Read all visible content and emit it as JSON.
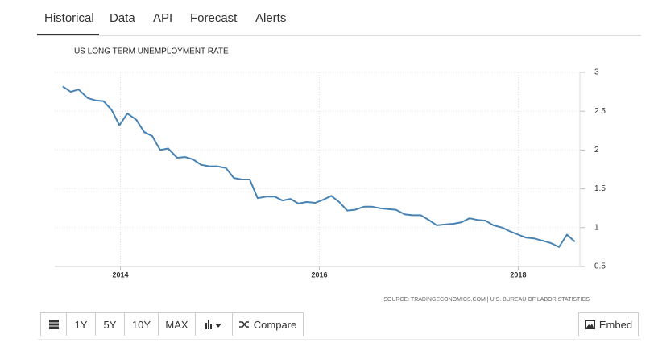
{
  "tabs": [
    "Historical",
    "Data",
    "API",
    "Forecast",
    "Alerts"
  ],
  "chart_data": {
    "type": "line",
    "title": "US LONG TERM UNEMPLOYMENT RATE",
    "color": "#4682b4",
    "x": [
      2013.42,
      2013.5,
      2013.58,
      2013.67,
      2013.75,
      2013.83,
      2013.91,
      2013.99,
      2014.07,
      2014.16,
      2014.24,
      2014.32,
      2014.4,
      2014.48,
      2014.57,
      2014.65,
      2014.73,
      2014.81,
      2014.89,
      2014.97,
      2015.06,
      2015.14,
      2015.22,
      2015.3,
      2015.38,
      2015.47,
      2015.55,
      2015.63,
      2015.71,
      2015.79,
      2015.87,
      2015.96,
      2016.04,
      2016.12,
      2016.2,
      2016.28,
      2016.36,
      2016.45,
      2016.53,
      2016.61,
      2016.69,
      2016.77,
      2016.86,
      2016.94,
      2017.02,
      2017.1,
      2017.18,
      2017.26,
      2017.35,
      2017.43,
      2017.51,
      2017.59,
      2017.67,
      2017.75,
      2017.84,
      2017.92,
      2018.0,
      2018.08,
      2018.16,
      2018.25,
      2018.33,
      2018.41,
      2018.49,
      2018.57
    ],
    "values": [
      2.82,
      2.75,
      2.78,
      2.67,
      2.64,
      2.63,
      2.52,
      2.32,
      2.47,
      2.39,
      2.23,
      2.18,
      2.0,
      2.02,
      1.9,
      1.91,
      1.88,
      1.81,
      1.79,
      1.79,
      1.77,
      1.64,
      1.62,
      1.62,
      1.38,
      1.4,
      1.4,
      1.35,
      1.37,
      1.31,
      1.33,
      1.32,
      1.36,
      1.41,
      1.33,
      1.22,
      1.23,
      1.27,
      1.27,
      1.25,
      1.24,
      1.23,
      1.17,
      1.16,
      1.16,
      1.1,
      1.03,
      1.04,
      1.05,
      1.07,
      1.12,
      1.1,
      1.09,
      1.03,
      1.0,
      0.95,
      0.91,
      0.87,
      0.86,
      0.83,
      0.8,
      0.75,
      0.91,
      0.82
    ],
    "xlim": [
      2013.34,
      2018.62
    ],
    "xticks": [
      2014,
      2016,
      2018
    ],
    "ylim": [
      0.5,
      3
    ],
    "yticks": [
      0.5,
      1,
      1.5,
      2,
      2.5,
      3
    ],
    "grid": true
  },
  "source": "SOURCE: TRADINGECONOMICS.COM | U.S. BUREAU OF LABOR STATISTICS",
  "buttons": {
    "1y": "1Y",
    "5y": "5Y",
    "10y": "10Y",
    "max": "MAX",
    "compare": "Compare",
    "embed": "Embed"
  }
}
